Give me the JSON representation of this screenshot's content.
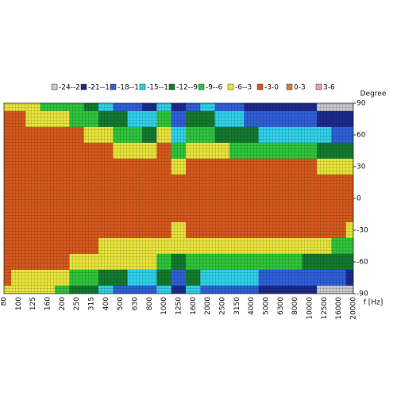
{
  "chart_data": {
    "type": "heatmap",
    "x_label": "f [Hz]",
    "y_label": "Degree",
    "legend": [
      "-24--21",
      "-21--18",
      "-18--15",
      "-15--12",
      "-12--9",
      "-9--6",
      "-6--3",
      "-3-0",
      "0-3",
      "3-6"
    ],
    "levels": [
      -24,
      -21,
      -18,
      -15,
      -12,
      -9,
      -6,
      -3,
      0,
      3,
      6
    ],
    "colors": [
      "#c8c8c8",
      "#1c2a8c",
      "#2f5fd8",
      "#2fd0ea",
      "#137a2e",
      "#2ec43c",
      "#e6e43c",
      "#d4581c",
      "#e07a30",
      "#f0a0a0"
    ],
    "categories": [
      "80",
      "100",
      "125",
      "160",
      "200",
      "250",
      "315",
      "400",
      "500",
      "630",
      "800",
      "1000",
      "1250",
      "1600",
      "2000",
      "2500",
      "3150",
      "4000",
      "5000",
      "6300",
      "8000",
      "10000",
      "12500",
      "16000",
      "20000"
    ],
    "y": [
      90,
      75,
      60,
      45,
      30,
      15,
      0,
      -15,
      -30,
      -45,
      -60,
      -75,
      -90
    ],
    "ylim": [
      -90,
      90
    ],
    "yticks": [
      90,
      60,
      30,
      0,
      -30,
      -60,
      -90
    ],
    "z": [
      [
        -4.5,
        -4.5,
        -4.5,
        -7.5,
        -7.5,
        -7.5,
        -10.5,
        -13.5,
        -16.5,
        -16.5,
        -19.5,
        -13.5,
        -19.5,
        -16.5,
        -13.5,
        -16.5,
        -16.5,
        -19.5,
        -19.5,
        -19.5,
        -19.5,
        -19.5,
        -22.5,
        -22.5,
        -22.5
      ],
      [
        -1.5,
        -1.5,
        -4.5,
        -4.5,
        -4.5,
        -7.5,
        -7.5,
        -10.5,
        -10.5,
        -13.5,
        -13.5,
        -7.5,
        -16.5,
        -10.5,
        -10.5,
        -13.5,
        -13.5,
        -16.5,
        -16.5,
        -16.5,
        -16.5,
        -16.5,
        -19.5,
        -19.5,
        -19.5
      ],
      [
        -1.5,
        -1.5,
        -1.5,
        -1.5,
        -1.5,
        -1.5,
        -4.5,
        -4.5,
        -7.5,
        -7.5,
        -10.5,
        -4.5,
        -13.5,
        -7.5,
        -7.5,
        -10.5,
        -10.5,
        -10.5,
        -13.5,
        -13.5,
        -13.5,
        -13.5,
        -13.5,
        -16.5,
        -16.5
      ],
      [
        -1.5,
        -1.5,
        -1.5,
        -1.5,
        -1.5,
        -1.5,
        -1.5,
        -1.5,
        -4.5,
        -4.5,
        -4.5,
        -1.5,
        -7.5,
        -4.5,
        -4.5,
        -4.5,
        -7.5,
        -7.5,
        -7.5,
        -7.5,
        -7.5,
        -7.5,
        -10.5,
        -10.5,
        -10.5
      ],
      [
        -1.5,
        -1.5,
        -1.5,
        -1.5,
        -1.5,
        -1.5,
        -1.5,
        -1.5,
        -1.5,
        -1.5,
        -1.5,
        -1.5,
        -4.5,
        -1.5,
        -1.5,
        -1.5,
        -1.5,
        -1.5,
        -1.5,
        -1.5,
        -1.5,
        -1.5,
        -4.5,
        -4.5,
        -4.5
      ],
      [
        -1.5,
        -1.5,
        -1.5,
        -1.5,
        -1.5,
        -1.5,
        -1.5,
        -1.5,
        -1.5,
        -1.5,
        -1.5,
        -1.5,
        -1.5,
        -1.5,
        -1.5,
        -1.5,
        -1.5,
        -1.5,
        -1.5,
        -1.5,
        -1.5,
        -1.5,
        -1.5,
        -1.5,
        -1.5
      ],
      [
        -1.5,
        -1.5,
        -1.5,
        -1.5,
        -1.5,
        -1.5,
        -1.5,
        -1.5,
        -1.5,
        -1.5,
        -1.5,
        -1.5,
        -1.5,
        -1.5,
        -1.5,
        -1.5,
        -1.5,
        -1.5,
        -1.5,
        -1.5,
        -1.5,
        -1.5,
        -1.5,
        -1.5,
        -1.5
      ],
      [
        -1.5,
        -1.5,
        -1.5,
        -1.5,
        -1.5,
        -1.5,
        -1.5,
        -1.5,
        -1.5,
        -1.5,
        -1.5,
        -1.5,
        -1.5,
        -1.5,
        -1.5,
        -1.5,
        -1.5,
        -1.5,
        -1.5,
        -1.5,
        -1.5,
        -1.5,
        -1.5,
        -1.5,
        -1.5
      ],
      [
        -1.5,
        -1.5,
        -1.5,
        -1.5,
        -1.5,
        -1.5,
        -1.5,
        -1.5,
        -1.5,
        -1.5,
        -1.5,
        -1.5,
        -4.5,
        -1.5,
        -1.5,
        -1.5,
        -1.5,
        -1.5,
        -1.5,
        -1.5,
        -1.5,
        -1.5,
        -1.5,
        -1.5,
        -4.5
      ],
      [
        -1.5,
        -1.5,
        -1.5,
        -1.5,
        -1.5,
        -1.5,
        -1.5,
        -4.5,
        -4.5,
        -4.5,
        -4.5,
        -4.5,
        -4.5,
        -4.5,
        -4.5,
        -4.5,
        -4.5,
        -4.5,
        -4.5,
        -4.5,
        -4.5,
        -4.5,
        -4.5,
        -7.5,
        -7.5
      ],
      [
        -1.5,
        -1.5,
        -1.5,
        -1.5,
        -1.5,
        -4.5,
        -4.5,
        -4.5,
        -4.5,
        -4.5,
        -4.5,
        -7.5,
        -10.5,
        -7.5,
        -7.5,
        -7.5,
        -7.5,
        -7.5,
        -7.5,
        -7.5,
        -7.5,
        -10.5,
        -10.5,
        -10.5,
        -10.5
      ],
      [
        -1.5,
        -4.5,
        -4.5,
        -4.5,
        -4.5,
        -7.5,
        -7.5,
        -10.5,
        -10.5,
        -13.5,
        -13.5,
        -10.5,
        -16.5,
        -10.5,
        -13.5,
        -13.5,
        -13.5,
        -13.5,
        -16.5,
        -16.5,
        -16.5,
        -16.5,
        -16.5,
        -16.5,
        -19.5
      ],
      [
        -4.5,
        -4.5,
        -4.5,
        -4.5,
        -7.5,
        -10.5,
        -10.5,
        -13.5,
        -16.5,
        -16.5,
        -16.5,
        -13.5,
        -19.5,
        -13.5,
        -16.5,
        -16.5,
        -16.5,
        -16.5,
        -19.5,
        -19.5,
        -19.5,
        -19.5,
        -22.5,
        -22.5,
        -22.5
      ]
    ]
  }
}
